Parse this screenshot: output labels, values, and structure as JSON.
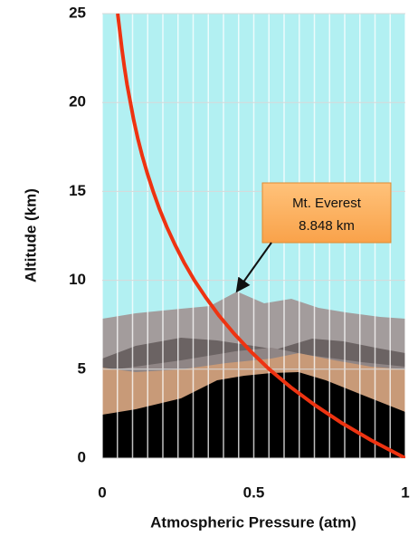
{
  "chart_data": {
    "type": "line",
    "xlabel": "Atmospheric Pressure (atm)",
    "ylabel": "Altitude (km)",
    "x": [
      1,
      0.888,
      0.788,
      0.7,
      0.621,
      0.551,
      0.49,
      0.435,
      0.386,
      0.343,
      0.304,
      0.27,
      0.24,
      0.213,
      0.189,
      0.168,
      0.149,
      0.132,
      0.117,
      0.104,
      0.093,
      0.082,
      0.073,
      0.065,
      0.058,
      0.051
    ],
    "series": [
      {
        "color": "#ee3311",
        "values": [
          0,
          1,
          2,
          3,
          4,
          5,
          6,
          7,
          8,
          9,
          10,
          11,
          12,
          13,
          14,
          15,
          16,
          17,
          18,
          19,
          20,
          21,
          22,
          23,
          24,
          25
        ]
      }
    ],
    "xlim": [
      0,
      1
    ],
    "ylim": [
      0,
      25
    ],
    "xticks": [
      0,
      0.5,
      1
    ],
    "yticks": [
      0,
      5,
      10,
      15,
      20,
      25
    ],
    "xminorticks": [
      0,
      0.05,
      0.1,
      0.15,
      0.2,
      0.25,
      0.3,
      0.35,
      0.4,
      0.45,
      0.5,
      0.55,
      0.6,
      0.65,
      0.7,
      0.75,
      0.8,
      0.85,
      0.9,
      0.95,
      1
    ],
    "grid": true,
    "annotation": [
      "Mt. Everest",
      "8.848 km"
    ]
  }
}
